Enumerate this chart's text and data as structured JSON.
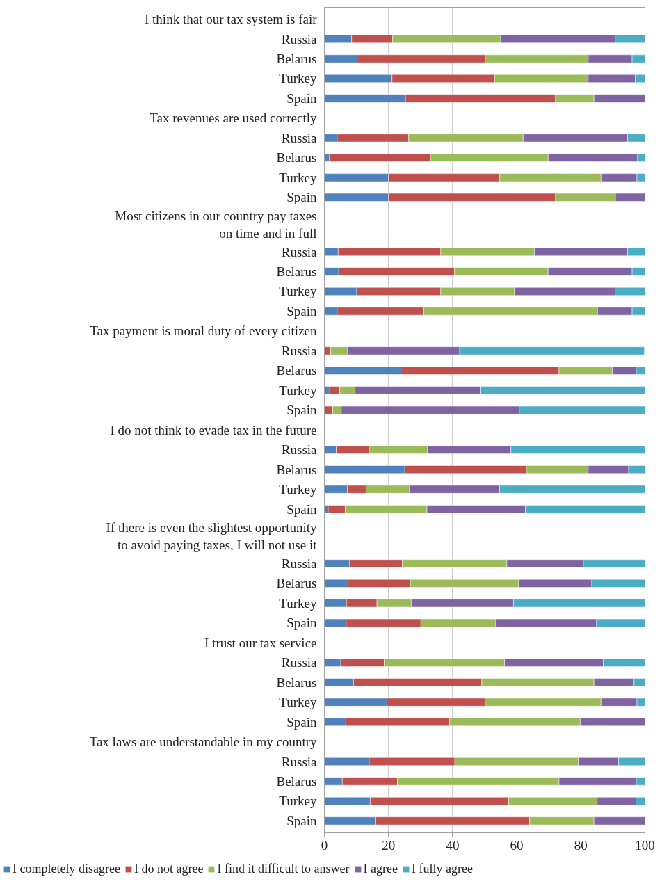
{
  "chart_data": {
    "type": "bar",
    "orientation": "horizontal",
    "stacked": true,
    "categories": [
      "I think that our tax system is fair",
      "Russia",
      "Belarus",
      "Turkey",
      "Spain",
      "Tax revenues are used correctly",
      "Russia",
      "Belarus",
      "Turkey",
      "Spain",
      "Most citizens in our country pay taxes\non time and in full",
      "Russia",
      "Belarus",
      "Turkey",
      "Spain",
      "Tax payment is moral duty of every citizen",
      "Russia",
      "Belarus",
      "Turkey",
      "Spain",
      "I do not think to evade tax in the future",
      "Russia",
      "Belarus",
      "Turkey",
      "Spain",
      "If there is even the slightest opportunity\nto avoid paying taxes, I will not use it",
      "Russia",
      "Belarus",
      "Turkey",
      "Spain",
      "I trust our tax service",
      "Russia",
      "Belarus",
      "Turkey",
      "Spain",
      "Tax laws are understandable in my country",
      "Russia",
      "Belarus",
      "Turkey",
      "Spain"
    ],
    "series": [
      {
        "name": "I completely disagree",
        "color": "#4f81bd",
        "values": [
          null,
          8.5,
          10.2,
          21.1,
          25.3,
          null,
          4.0,
          1.6,
          20.0,
          20.0,
          null,
          4.3,
          4.5,
          10.1,
          4.0,
          null,
          null,
          23.9,
          1.7,
          0,
          null,
          3.7,
          25.1,
          7.2,
          1.2,
          null,
          7.9,
          7.4,
          6.9,
          6.8,
          null,
          5.1,
          9.1,
          19.5,
          6.7,
          null,
          14.0,
          5.6,
          14.3,
          15.9
        ]
      },
      {
        "name": "I do not agree",
        "color": "#c0504d",
        "values": [
          null,
          12.8,
          40.0,
          32.0,
          46.8,
          null,
          22.3,
          31.5,
          34.7,
          52.1,
          null,
          32.0,
          36.1,
          26.2,
          27.0,
          null,
          2.0,
          49.3,
          3.1,
          2.6,
          null,
          10.3,
          37.9,
          5.8,
          5.3,
          null,
          16.4,
          19.4,
          9.5,
          23.3,
          null,
          13.6,
          40.0,
          30.6,
          32.4,
          null,
          26.7,
          17.2,
          43.2,
          48.1
        ]
      },
      {
        "name": "I find it difficult to answer",
        "color": "#9bbb59",
        "values": [
          null,
          33.7,
          32.1,
          29.2,
          12.0,
          null,
          35.7,
          36.7,
          31.6,
          18.7,
          null,
          29.2,
          29.2,
          23.0,
          54.2,
          null,
          5.3,
          16.6,
          4.8,
          2.7,
          null,
          18.2,
          19.3,
          13.6,
          25.5,
          null,
          32.6,
          33.8,
          10.8,
          23.4,
          null,
          37.5,
          35.0,
          36.2,
          40.7,
          null,
          38.5,
          50.4,
          27.6,
          20.1
        ]
      },
      {
        "name": "I agree",
        "color": "#8064a2",
        "values": [
          null,
          35.7,
          13.7,
          14.7,
          15.9,
          null,
          32.6,
          27.9,
          11.2,
          9.2,
          null,
          29.1,
          26.2,
          31.4,
          10.8,
          null,
          34.9,
          7.5,
          39.0,
          55.5,
          null,
          26.0,
          12.6,
          28.1,
          30.7,
          null,
          23.9,
          22.8,
          31.8,
          31.4,
          null,
          30.8,
          12.5,
          11.2,
          20.2,
          null,
          12.6,
          24.1,
          12.1,
          15.9
        ]
      },
      {
        "name": "I fully agree",
        "color": "#4bacc6",
        "values": [
          null,
          9.3,
          4.0,
          3.0,
          0,
          null,
          5.4,
          2.3,
          2.5,
          0,
          null,
          5.4,
          4.0,
          9.3,
          4.0,
          null,
          57.6,
          2.7,
          51.4,
          39.2,
          null,
          41.8,
          5.1,
          45.3,
          37.3,
          null,
          19.2,
          16.6,
          41.0,
          15.1,
          null,
          13.0,
          3.4,
          2.5,
          0,
          null,
          8.2,
          2.7,
          2.8,
          0
        ]
      }
    ],
    "xlim": [
      0,
      100
    ],
    "xticks": [
      0,
      20,
      40,
      60,
      80,
      100
    ],
    "grid": "x",
    "legend": "bottom"
  }
}
